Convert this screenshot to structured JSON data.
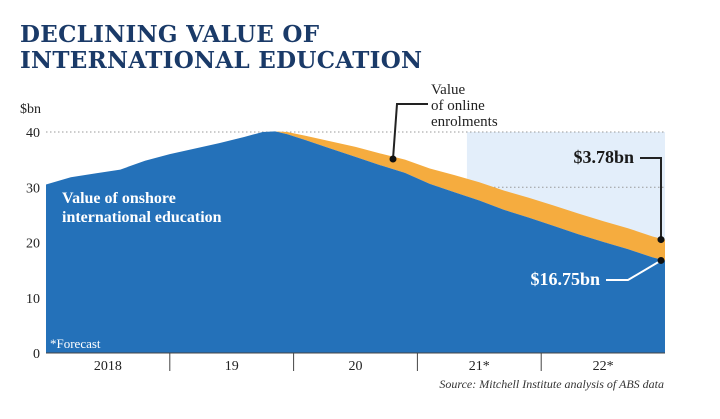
{
  "title_lines": [
    "DECLINING VALUE OF",
    "INTERNATIONAL EDUCATION"
  ],
  "colors": {
    "onshore": "#2471b9",
    "online": "#f5ac3f",
    "forecast_shade": "#e3eefa",
    "title": "#1a3a68"
  },
  "chart_data": {
    "type": "area",
    "unit_label": "$bn",
    "ylim": [
      0,
      40
    ],
    "yticks": [
      "0",
      "10",
      "20",
      "30",
      "40"
    ],
    "x_axis_labels": [
      "2018",
      "19",
      "20",
      "21*",
      "22*"
    ],
    "x_domain": [
      2017.5,
      2022.5
    ],
    "forecast_start": 2020.9,
    "series": [
      {
        "name": "Value of onshore international education",
        "x": [
          2017.5,
          2017.7,
          2017.9,
          2018.1,
          2018.3,
          2018.5,
          2018.7,
          2018.9,
          2019.1,
          2019.25,
          2019.35,
          2019.45,
          2019.6,
          2019.8,
          2020.0,
          2020.2,
          2020.4,
          2020.6,
          2020.8,
          2021.0,
          2021.2,
          2021.4,
          2021.6,
          2021.8,
          2022.0,
          2022.2,
          2022.4,
          2022.5
        ],
        "values": [
          30.5,
          31.8,
          32.5,
          33.2,
          34.8,
          36.0,
          37.0,
          38.0,
          39.1,
          40.0,
          40.1,
          39.6,
          38.5,
          37.0,
          35.5,
          34.0,
          32.6,
          30.6,
          29.1,
          27.6,
          25.9,
          24.5,
          23.0,
          21.5,
          20.1,
          18.8,
          17.3,
          16.75
        ]
      },
      {
        "name": "Value of online enrolments",
        "x": [
          2019.25,
          2019.35,
          2019.45,
          2019.6,
          2019.8,
          2020.0,
          2020.2,
          2020.4,
          2020.6,
          2020.8,
          2021.0,
          2021.2,
          2021.4,
          2021.6,
          2021.8,
          2022.0,
          2022.2,
          2022.4,
          2022.5
        ],
        "values": [
          0.0,
          0.0,
          0.4,
          0.8,
          1.3,
          1.8,
          2.1,
          2.4,
          2.8,
          3.1,
          3.3,
          3.5,
          3.6,
          3.7,
          3.75,
          3.78,
          3.78,
          3.78,
          3.78
        ]
      }
    ],
    "annotations": {
      "onshore_label_lines": [
        "Value of onshore",
        "international education"
      ],
      "online_label_lines": [
        "Value",
        "of online",
        "enrolments"
      ],
      "online_end_value": "$3.78bn",
      "onshore_end_value": "$16.75bn",
      "forecast_note": "*Forecast"
    },
    "source": "Source: Mitchell Institute analysis of ABS data"
  }
}
